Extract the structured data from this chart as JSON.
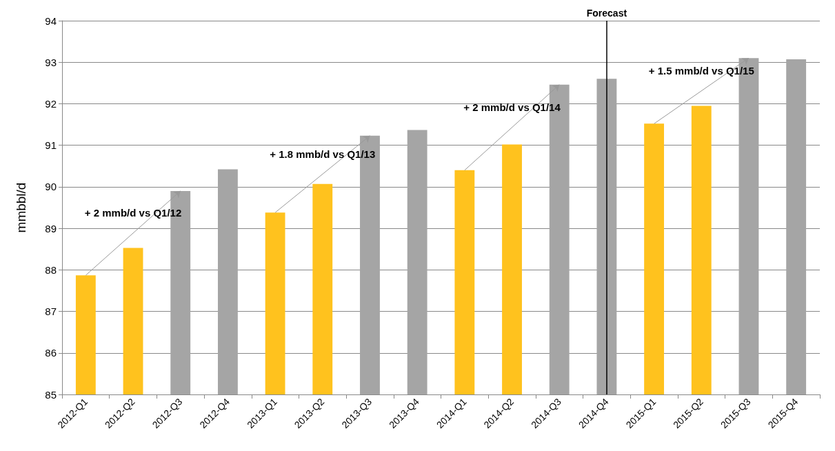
{
  "chart_data": {
    "type": "bar",
    "ylabel": "mmbbl/d",
    "categories": [
      "2012-Q1",
      "2012-Q2",
      "2012-Q3",
      "2012-Q4",
      "2013-Q1",
      "2013-Q2",
      "2013-Q3",
      "2013-Q4",
      "2014-Q1",
      "2014-Q2",
      "2014-Q3",
      "2014-Q4",
      "2015-Q1",
      "2015-Q2",
      "2015-Q3",
      "2015-Q4"
    ],
    "values": [
      87.87,
      88.53,
      89.9,
      90.42,
      89.38,
      90.07,
      91.23,
      91.37,
      90.4,
      91.02,
      92.46,
      92.6,
      91.52,
      91.95,
      93.1,
      93.07
    ],
    "colors": [
      "#ffc21e",
      "#ffc21e",
      "#a5a5a5",
      "#a5a5a5",
      "#ffc21e",
      "#ffc21e",
      "#a5a5a5",
      "#a5a5a5",
      "#ffc21e",
      "#ffc21e",
      "#a5a5a5",
      "#a5a5a5",
      "#ffc21e",
      "#ffc21e",
      "#a5a5a5",
      "#a5a5a5"
    ],
    "ylim": [
      85,
      94
    ],
    "yticks": [
      85,
      86,
      87,
      88,
      89,
      90,
      91,
      92,
      93,
      94
    ],
    "grid": "y",
    "annotations": [
      {
        "text": "+ 2 mmb/d vs Q1/12",
        "x": "2012-Q3",
        "y": 89.9
      },
      {
        "text": "+ 1.8 mmb/d vs Q1/13",
        "x": "2013-Q3",
        "y": 91.23
      },
      {
        "text": "+ 2 mmb/d vs Q1/14",
        "x": "2014-Q3",
        "y": 92.46
      },
      {
        "text": "+ 1.5 mmb/d vs Q1/15",
        "x": "2015-Q3",
        "y": 93.1
      }
    ],
    "ref_lines": [
      {
        "axis": "x",
        "value": "2014-Q4",
        "label": "Forecast",
        "color": "#000000"
      }
    ]
  }
}
